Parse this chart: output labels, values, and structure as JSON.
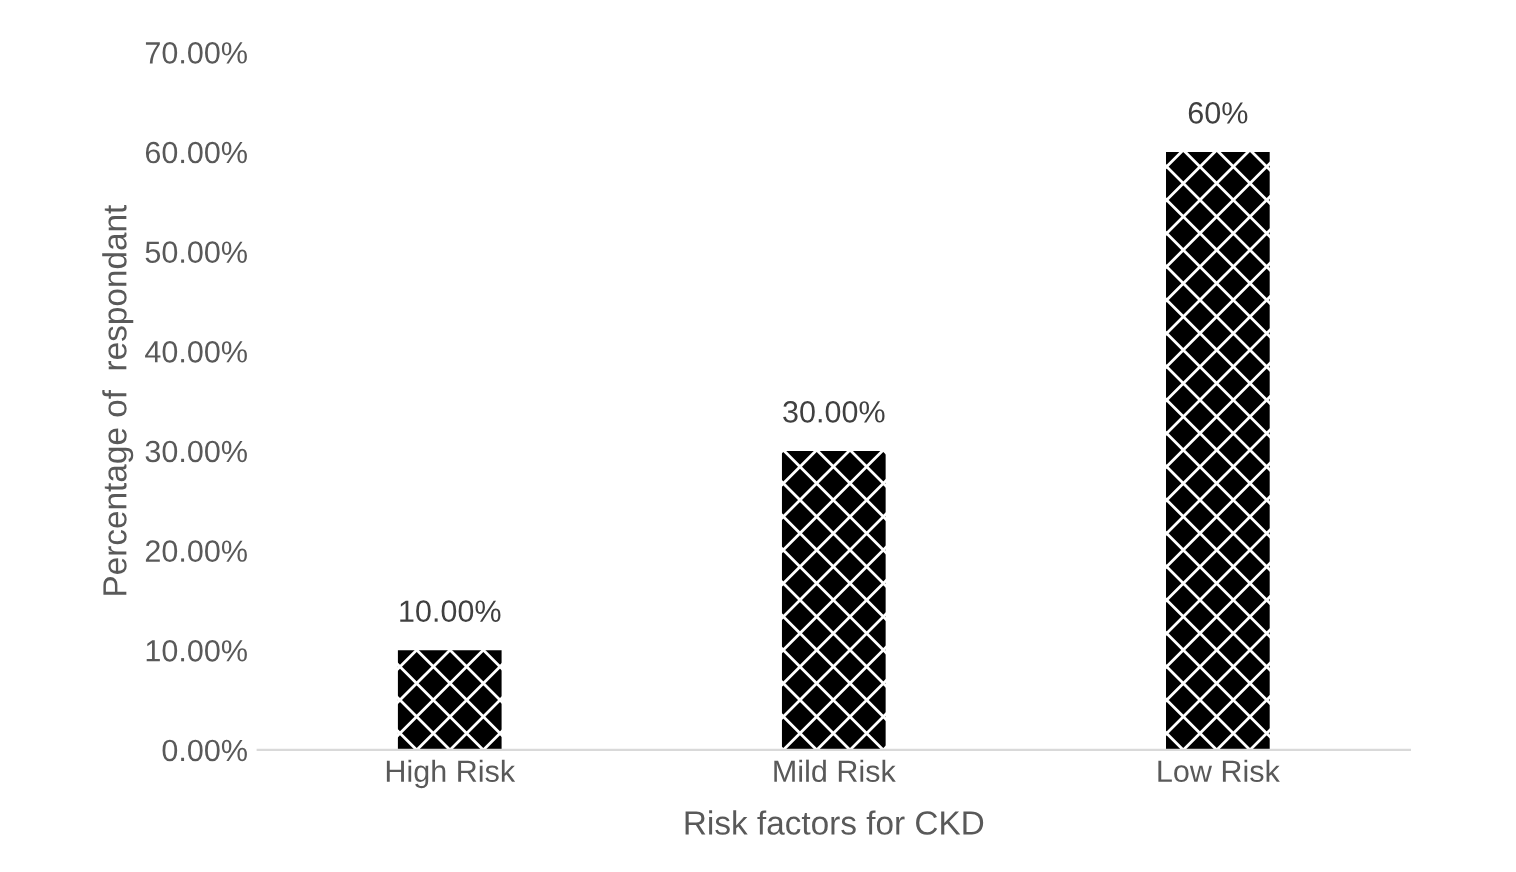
{
  "chart_data": {
    "type": "bar",
    "xlabel": "Risk factors for CKD",
    "ylabel": "Percentage of  respondant",
    "categories": [
      "High Risk",
      "Mild Risk",
      "Low Risk"
    ],
    "values": [
      10,
      30,
      60
    ],
    "color": "#000000",
    "value_labels": [
      "10.00%",
      "30.00%",
      "60%"
    ],
    "ylim": [
      0,
      70
    ],
    "yticks": [
      {
        "value": 0,
        "label": "0.00%"
      },
      {
        "value": 10,
        "label": "10.00%"
      },
      {
        "value": 20,
        "label": "20.00%"
      },
      {
        "value": 30,
        "label": "30.00%"
      },
      {
        "value": 40,
        "label": "40.00%"
      },
      {
        "value": 50,
        "label": "50.00%"
      },
      {
        "value": 60,
        "label": "60.00%"
      },
      {
        "value": 70,
        "label": "70.00%"
      }
    ],
    "grid": false
  }
}
